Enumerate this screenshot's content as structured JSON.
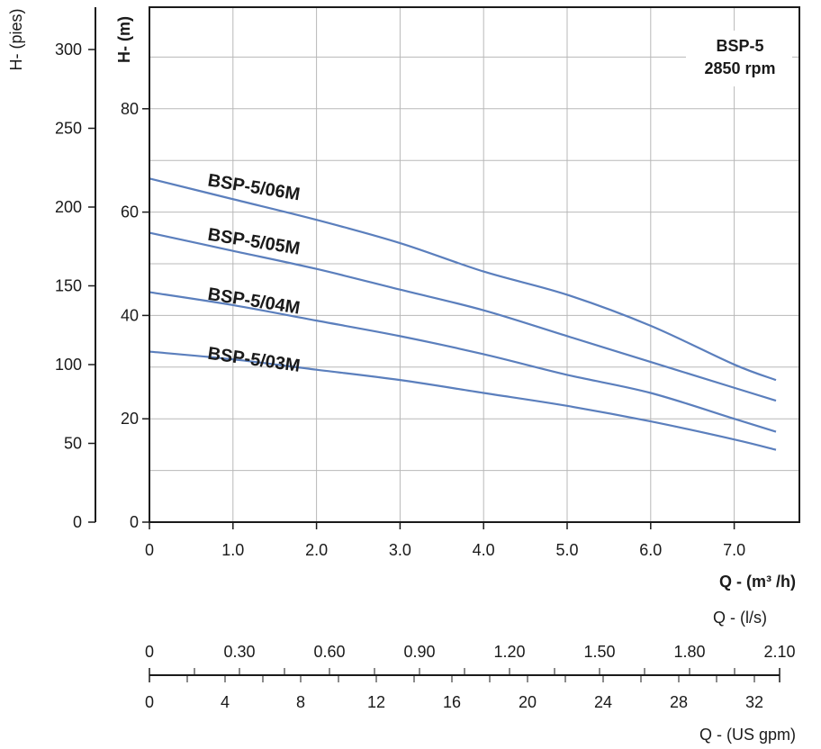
{
  "chart_data": {
    "type": "line",
    "title": "",
    "badge": {
      "model": "BSP-5",
      "speed": "2850 rpm"
    },
    "xlabel": "Q - (m³ /h)",
    "ylabel": "H- (m)",
    "ylabel_secondary": "H- (pies)",
    "x_ticks": [
      "0",
      "1.0",
      "2.0",
      "3.0",
      "4.0",
      "5.0",
      "6.0",
      "7.0"
    ],
    "y_ticks": [
      "0",
      "20",
      "40",
      "60",
      "80"
    ],
    "y_ticks_secondary": [
      "0",
      "50",
      "100",
      "150",
      "200",
      "250",
      "300"
    ],
    "xlim": [
      0,
      7.5
    ],
    "ylim": [
      0,
      100
    ],
    "ylim_secondary": [
      0,
      328
    ],
    "grid": true,
    "series": [
      {
        "name": "BSP-5/06M",
        "x": [
          0,
          1,
          2,
          3,
          4,
          5,
          6,
          7,
          7.5
        ],
        "y": [
          66.5,
          62.5,
          58.5,
          54,
          48.5,
          44,
          38,
          30.5,
          27.5
        ]
      },
      {
        "name": "BSP-5/05M",
        "x": [
          0,
          1,
          2,
          3,
          4,
          5,
          6,
          7,
          7.5
        ],
        "y": [
          56,
          52.5,
          49,
          45,
          41,
          36,
          31,
          26,
          23.5
        ]
      },
      {
        "name": "BSP-5/04M",
        "x": [
          0,
          1,
          2,
          3,
          4,
          5,
          6,
          7,
          7.5
        ],
        "y": [
          44.5,
          42,
          39,
          36,
          32.5,
          28.5,
          25,
          20,
          17.5
        ]
      },
      {
        "name": "BSP-5/03M",
        "x": [
          0,
          1,
          2,
          3,
          4,
          5,
          6,
          7,
          7.5
        ],
        "y": [
          33,
          31.5,
          29.5,
          27.5,
          25,
          22.5,
          19.5,
          16,
          14
        ]
      }
    ],
    "secondary_x_axes": [
      {
        "label": "Q - (l/s)",
        "ticks": [
          "0",
          "0.30",
          "0.60",
          "0.90",
          "1.20",
          "1.50",
          "1.80",
          "2.10"
        ],
        "range": [
          0,
          2.1
        ]
      },
      {
        "label": "Q - (US gpm)",
        "ticks": [
          "0",
          "4",
          "8",
          "12",
          "16",
          "20",
          "24",
          "28",
          "32"
        ],
        "range": [
          0,
          32
        ]
      }
    ],
    "colors": {
      "line": "#5b7fbd",
      "grid": "#b8b8b8",
      "axis": "#1a1a1a"
    }
  }
}
